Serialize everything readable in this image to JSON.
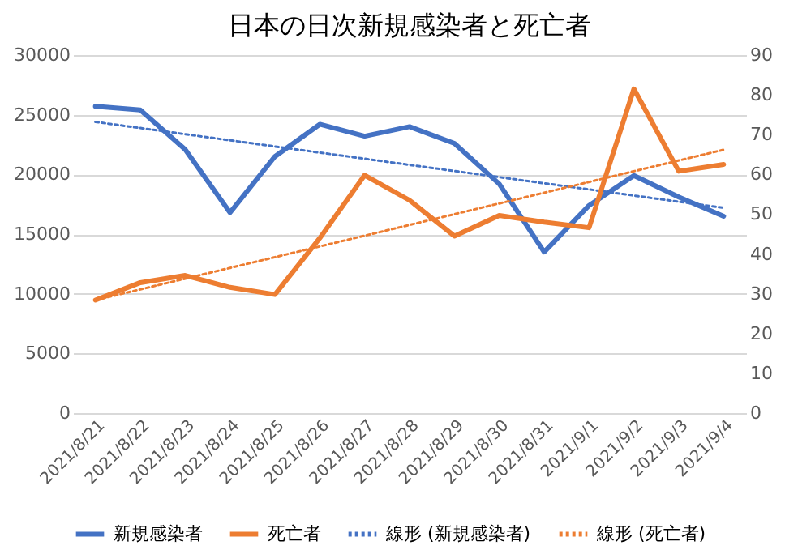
{
  "chart_data": {
    "type": "line",
    "title": "日本の日次新規感染者と死亡者",
    "categories": [
      "2021/8/21",
      "2021/8/22",
      "2021/8/23",
      "2021/8/24",
      "2021/8/25",
      "2021/8/26",
      "2021/8/27",
      "2021/8/28",
      "2021/8/29",
      "2021/8/30",
      "2021/8/31",
      "2021/9/1",
      "2021/9/2",
      "2021/9/3",
      "2021/9/4"
    ],
    "series": [
      {
        "name": "新規感染者",
        "color": "#4472c4",
        "line_style": "solid",
        "values": [
          25700,
          25400,
          22100,
          16800,
          21500,
          24200,
          23200,
          24000,
          22600,
          19200,
          13500,
          17400,
          19900,
          18100,
          16500
        ]
      },
      {
        "name": "死亡者",
        "color": "#ed7d31",
        "line_style": "solid",
        "axis": "y2",
        "values": [
          28.4,
          32.8,
          34.6,
          31.6,
          29.8,
          44,
          59.8,
          53.5,
          44.5,
          49.7,
          48,
          46.6,
          81.5,
          60.8,
          62.5
        ]
      },
      {
        "name": "線形 (新規感染者)",
        "color": "#4472c4",
        "line_style": "dotted",
        "x": [
          "2021/8/21",
          "2021/9/4"
        ],
        "values": [
          24400,
          17200
        ]
      },
      {
        "name": "線形 (死亡者)",
        "color": "#ed7d31",
        "line_style": "dotted",
        "axis": "y2",
        "x": [
          "2021/8/21",
          "2021/9/4"
        ],
        "values": [
          28.4,
          66.2
        ]
      }
    ],
    "ylim": [
      0,
      30000
    ],
    "yticks": [
      0,
      5000,
      10000,
      15000,
      20000,
      25000,
      30000
    ],
    "y2lim": [
      0,
      90
    ],
    "y2ticks": [
      0,
      10,
      20,
      30,
      40,
      50,
      60,
      70,
      80,
      90
    ],
    "grid": "y",
    "legend": "bottom",
    "marker": "none"
  }
}
